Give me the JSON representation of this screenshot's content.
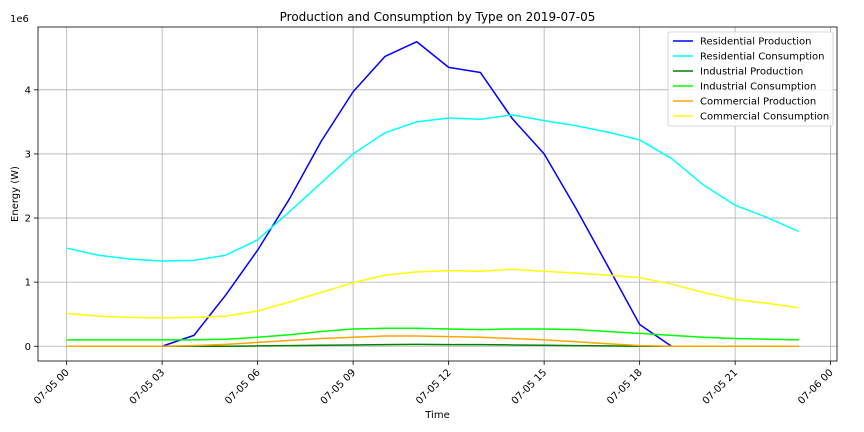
{
  "chart_data": {
    "type": "line",
    "title": "Production and Consumption by Type on 2019-07-05",
    "xlabel": "Time",
    "ylabel": "Energy (W)",
    "y_offset_label": "1e6",
    "x_unit": "hour",
    "x_ticks": [
      {
        "value": 0,
        "label": "07-05 00"
      },
      {
        "value": 3,
        "label": "07-05 03"
      },
      {
        "value": 6,
        "label": "07-05 06"
      },
      {
        "value": 9,
        "label": "07-05 09"
      },
      {
        "value": 12,
        "label": "07-05 12"
      },
      {
        "value": 15,
        "label": "07-05 15"
      },
      {
        "value": 18,
        "label": "07-05 18"
      },
      {
        "value": 21,
        "label": "07-05 21"
      },
      {
        "value": 24,
        "label": "07-06 00"
      }
    ],
    "y_ticks": [
      {
        "value": 0,
        "label": "0"
      },
      {
        "value": 1000000,
        "label": "1"
      },
      {
        "value": 2000000,
        "label": "2"
      },
      {
        "value": 3000000,
        "label": "3"
      },
      {
        "value": 4000000,
        "label": "4"
      }
    ],
    "xlim": [
      -0.9,
      24.2
    ],
    "ylim": [
      -230000,
      4980000
    ],
    "grid": true,
    "legend_position": "top-right",
    "x": [
      0,
      1,
      2,
      3,
      4,
      5,
      6,
      7,
      8,
      9,
      10,
      11,
      12,
      13,
      14,
      15,
      16,
      17,
      18,
      19,
      20,
      21,
      22,
      23
    ],
    "series": [
      {
        "name": "Residential Production",
        "color": "#0000ff",
        "values": [
          0,
          0,
          0,
          0,
          170000,
          800000,
          1500000,
          2300000,
          3200000,
          3970000,
          4520000,
          4750000,
          4350000,
          4270000,
          3550000,
          3000000,
          2150000,
          1250000,
          340000,
          0,
          0,
          0,
          0,
          0
        ]
      },
      {
        "name": "Residential Consumption",
        "color": "#00ffff",
        "values": [
          1530000,
          1420000,
          1360000,
          1330000,
          1340000,
          1420000,
          1660000,
          2100000,
          2550000,
          3000000,
          3330000,
          3500000,
          3560000,
          3540000,
          3610000,
          3520000,
          3440000,
          3340000,
          3220000,
          2930000,
          2520000,
          2200000,
          2010000,
          1790000
        ]
      },
      {
        "name": "Industrial Production",
        "color": "#008000",
        "values": [
          0,
          0,
          0,
          0,
          0,
          0,
          5000,
          10000,
          15000,
          20000,
          25000,
          30000,
          25000,
          25000,
          20000,
          15000,
          10000,
          5000,
          0,
          0,
          0,
          0,
          0,
          0
        ]
      },
      {
        "name": "Industrial Consumption",
        "color": "#00ff00",
        "values": [
          100000,
          100000,
          100000,
          100000,
          100000,
          110000,
          140000,
          180000,
          230000,
          270000,
          280000,
          280000,
          270000,
          260000,
          270000,
          270000,
          260000,
          230000,
          200000,
          170000,
          140000,
          120000,
          110000,
          100000
        ]
      },
      {
        "name": "Commercial Production",
        "color": "#ffa500",
        "values": [
          0,
          0,
          0,
          0,
          10000,
          30000,
          60000,
          90000,
          120000,
          140000,
          160000,
          160000,
          150000,
          140000,
          120000,
          100000,
          70000,
          40000,
          10000,
          0,
          0,
          0,
          0,
          0
        ]
      },
      {
        "name": "Commercial Consumption",
        "color": "#ffff00",
        "values": [
          510000,
          470000,
          450000,
          440000,
          450000,
          470000,
          550000,
          690000,
          840000,
          990000,
          1110000,
          1160000,
          1180000,
          1170000,
          1200000,
          1170000,
          1140000,
          1110000,
          1070000,
          970000,
          840000,
          730000,
          670000,
          600000
        ]
      }
    ]
  }
}
